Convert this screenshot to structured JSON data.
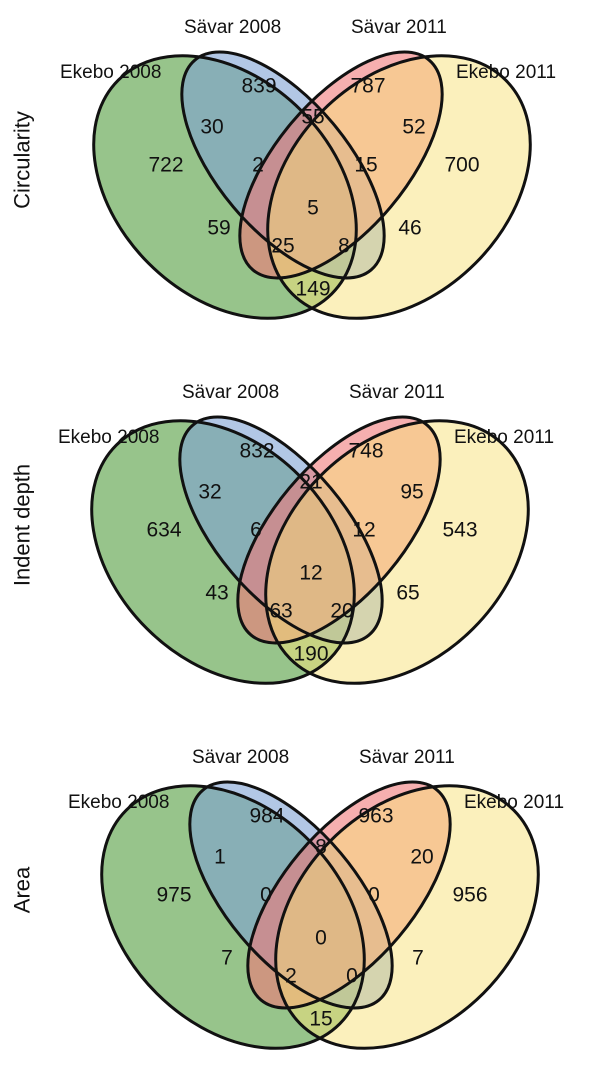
{
  "colors": {
    "ekebo_2008": "#74b064",
    "savar_2008": "#7ea2d3",
    "savar_2011": "#f07a7a",
    "ekebo_2011": "#f7e27a"
  },
  "set_labels": {
    "ekebo_2008": "Ekebo 2008",
    "savar_2008": "Sävar 2008",
    "savar_2011": "Sävar 2011",
    "ekebo_2011": "Ekebo 2011"
  },
  "chart_data": [
    {
      "type": "venn",
      "row_label": "Circularity",
      "regions": {
        "e08_only": "722",
        "s08_only": "839",
        "s11_only": "787",
        "e11_only": "700",
        "e08_s08": "30",
        "s08_s11": "55",
        "s11_e11": "52",
        "e08_s08_s11": "2",
        "s08_s11_e11": "15",
        "all": "5",
        "e08_s11": "59",
        "e08_s11_e11": "25",
        "e08_s08_e11": "8",
        "s08_e11": "46",
        "e08_e11": "149"
      }
    },
    {
      "type": "venn",
      "row_label": "Indent depth",
      "regions": {
        "e08_only": "634",
        "s08_only": "832",
        "s11_only": "748",
        "e11_only": "543",
        "e08_s08": "32",
        "s08_s11": "21",
        "s11_e11": "95",
        "e08_s08_s11": "6",
        "s08_s11_e11": "12",
        "all": "12",
        "e08_s11": "43",
        "e08_s11_e11": "63",
        "e08_s08_e11": "20",
        "s08_e11": "65",
        "e08_e11": "190"
      }
    },
    {
      "type": "venn",
      "row_label": "Area",
      "regions": {
        "e08_only": "975",
        "s08_only": "984",
        "s11_only": "963",
        "e11_only": "956",
        "e08_s08": "1",
        "s08_s11": "8",
        "s11_e11": "20",
        "e08_s08_s11": "0",
        "s08_s11_e11": "0",
        "all": "0",
        "e08_s11": "7",
        "e08_s11_e11": "2",
        "e08_s08_e11": "0",
        "s08_e11": "7",
        "e08_e11": "15"
      }
    }
  ]
}
